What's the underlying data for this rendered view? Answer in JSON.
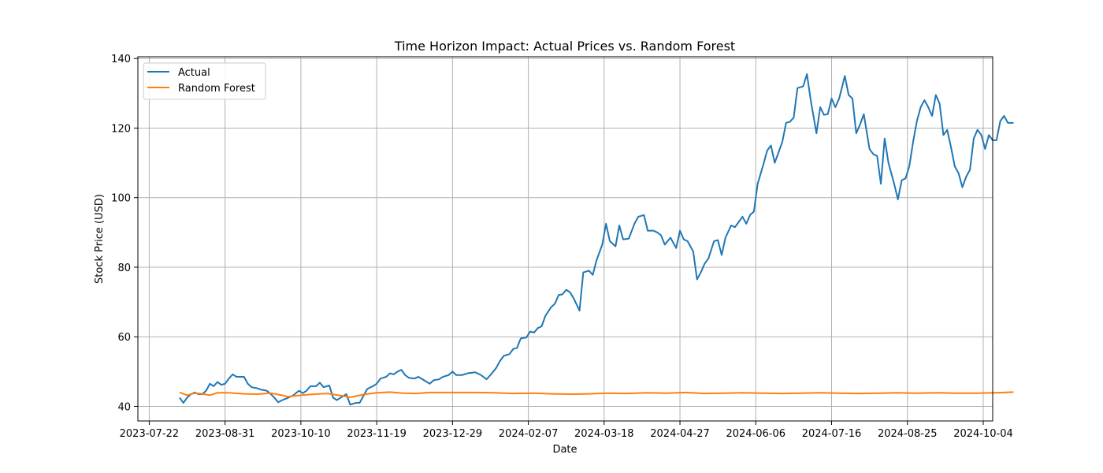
{
  "chart_data": {
    "type": "line",
    "title": "Time Horizon Impact: Actual Prices vs. Random Forest",
    "xlabel": "Date",
    "ylabel": "Stock Price (USD)",
    "x_ticks": [
      "2023-07-22",
      "2023-08-31",
      "2023-10-10",
      "2023-11-19",
      "2023-12-29",
      "2024-02-07",
      "2024-03-18",
      "2024-04-27",
      "2024-06-06",
      "2024-07-16",
      "2024-08-25",
      "2024-10-04"
    ],
    "y_ticks": [
      40,
      60,
      80,
      100,
      120,
      140
    ],
    "xlim": [
      "2023-07-16",
      "2024-10-09"
    ],
    "ylim": [
      35.8,
      140.5
    ],
    "grid": true,
    "legend": "top-left",
    "colors": {
      "actual": "#1f77b4",
      "random_forest": "#ff7f0e"
    },
    "series": [
      {
        "name": "Actual",
        "points": [
          [
            "2023-08-07",
            42.5
          ],
          [
            "2023-08-09",
            41.0
          ],
          [
            "2023-08-11",
            42.5
          ],
          [
            "2023-08-13",
            43.5
          ],
          [
            "2023-08-15",
            44.0
          ],
          [
            "2023-08-17",
            43.5
          ],
          [
            "2023-08-19",
            43.5
          ],
          [
            "2023-08-21",
            44.5
          ],
          [
            "2023-08-23",
            46.5
          ],
          [
            "2023-08-25",
            45.8
          ],
          [
            "2023-08-27",
            47.0
          ],
          [
            "2023-08-29",
            46.2
          ],
          [
            "2023-08-31",
            46.5
          ],
          [
            "2023-09-02",
            48.0
          ],
          [
            "2023-09-04",
            49.2
          ],
          [
            "2023-09-06",
            48.5
          ],
          [
            "2023-09-10",
            48.5
          ],
          [
            "2023-09-12",
            46.5
          ],
          [
            "2023-09-14",
            45.5
          ],
          [
            "2023-09-17",
            45.2
          ],
          [
            "2023-09-19",
            44.8
          ],
          [
            "2023-09-22",
            44.5
          ],
          [
            "2023-09-24",
            43.6
          ],
          [
            "2023-09-26",
            42.5
          ],
          [
            "2023-09-28",
            41.2
          ],
          [
            "2023-10-01",
            42.0
          ],
          [
            "2023-10-03",
            42.4
          ],
          [
            "2023-10-06",
            43.2
          ],
          [
            "2023-10-09",
            44.5
          ],
          [
            "2023-10-11",
            43.8
          ],
          [
            "2023-10-13",
            44.5
          ],
          [
            "2023-10-15",
            45.8
          ],
          [
            "2023-10-18",
            45.8
          ],
          [
            "2023-10-20",
            46.8
          ],
          [
            "2023-10-22",
            45.5
          ],
          [
            "2023-10-25",
            46.0
          ],
          [
            "2023-10-27",
            42.5
          ],
          [
            "2023-10-29",
            41.8
          ],
          [
            "2023-10-31",
            42.5
          ],
          [
            "2023-11-03",
            43.5
          ],
          [
            "2023-11-05",
            40.5
          ],
          [
            "2023-11-08",
            41.0
          ],
          [
            "2023-11-10",
            41.0
          ],
          [
            "2023-11-12",
            43.0
          ],
          [
            "2023-11-14",
            45.0
          ],
          [
            "2023-11-17",
            45.8
          ],
          [
            "2023-11-19",
            46.5
          ],
          [
            "2023-11-21",
            48.0
          ],
          [
            "2023-11-24",
            48.5
          ],
          [
            "2023-11-26",
            49.5
          ],
          [
            "2023-11-28",
            49.2
          ],
          [
            "2023-11-30",
            50.0
          ],
          [
            "2023-12-02",
            50.5
          ],
          [
            "2023-12-04",
            49.0
          ],
          [
            "2023-12-06",
            48.2
          ],
          [
            "2023-12-09",
            48.0
          ],
          [
            "2023-12-11",
            48.5
          ],
          [
            "2023-12-14",
            47.5
          ],
          [
            "2023-12-17",
            46.5
          ],
          [
            "2023-12-19",
            47.5
          ],
          [
            "2023-12-22",
            47.8
          ],
          [
            "2023-12-24",
            48.5
          ],
          [
            "2023-12-27",
            49.0
          ],
          [
            "2023-12-29",
            50.0
          ],
          [
            "2023-12-31",
            49.0
          ],
          [
            "2024-01-03",
            49.0
          ],
          [
            "2024-01-06",
            49.5
          ],
          [
            "2024-01-10",
            49.8
          ],
          [
            "2024-01-13",
            49.0
          ],
          [
            "2024-01-16",
            47.8
          ],
          [
            "2024-01-18",
            49.0
          ],
          [
            "2024-01-21",
            51.0
          ],
          [
            "2024-01-23",
            53.0
          ],
          [
            "2024-01-25",
            54.5
          ],
          [
            "2024-01-28",
            55.0
          ],
          [
            "2024-01-30",
            56.5
          ],
          [
            "2024-02-01",
            56.8
          ],
          [
            "2024-02-03",
            59.5
          ],
          [
            "2024-02-06",
            59.8
          ],
          [
            "2024-02-08",
            61.5
          ],
          [
            "2024-02-10",
            61.2
          ],
          [
            "2024-02-12",
            62.5
          ],
          [
            "2024-02-14",
            63.0
          ],
          [
            "2024-02-16",
            66.0
          ],
          [
            "2024-02-19",
            68.5
          ],
          [
            "2024-02-21",
            69.5
          ],
          [
            "2024-02-23",
            72.0
          ],
          [
            "2024-02-25",
            72.2
          ],
          [
            "2024-02-27",
            73.5
          ],
          [
            "2024-02-29",
            72.8
          ],
          [
            "2024-03-02",
            71.0
          ],
          [
            "2024-03-05",
            67.5
          ],
          [
            "2024-03-07",
            78.5
          ],
          [
            "2024-03-10",
            79.0
          ],
          [
            "2024-03-12",
            77.8
          ],
          [
            "2024-03-14",
            82.0
          ],
          [
            "2024-03-17",
            86.5
          ],
          [
            "2024-03-19",
            92.5
          ],
          [
            "2024-03-21",
            87.5
          ],
          [
            "2024-03-24",
            86.0
          ],
          [
            "2024-03-26",
            92.0
          ],
          [
            "2024-03-28",
            88.0
          ],
          [
            "2024-03-31",
            88.2
          ],
          [
            "2024-04-03",
            92.5
          ],
          [
            "2024-04-05",
            94.5
          ],
          [
            "2024-04-08",
            95.0
          ],
          [
            "2024-04-10",
            90.5
          ],
          [
            "2024-04-13",
            90.5
          ],
          [
            "2024-04-15",
            90.0
          ],
          [
            "2024-04-17",
            89.2
          ],
          [
            "2024-04-19",
            86.5
          ],
          [
            "2024-04-22",
            88.5
          ],
          [
            "2024-04-25",
            85.5
          ],
          [
            "2024-04-27",
            90.5
          ],
          [
            "2024-04-29",
            88.0
          ],
          [
            "2024-05-01",
            87.5
          ],
          [
            "2024-05-04",
            84.5
          ],
          [
            "2024-05-06",
            76.5
          ],
          [
            "2024-05-08",
            78.5
          ],
          [
            "2024-05-10",
            81.0
          ],
          [
            "2024-05-12",
            82.5
          ],
          [
            "2024-05-15",
            87.5
          ],
          [
            "2024-05-17",
            87.8
          ],
          [
            "2024-05-19",
            83.5
          ],
          [
            "2024-05-21",
            88.5
          ],
          [
            "2024-05-24",
            92.0
          ],
          [
            "2024-05-26",
            91.5
          ],
          [
            "2024-05-28",
            93.0
          ],
          [
            "2024-05-30",
            94.5
          ],
          [
            "2024-06-01",
            92.5
          ],
          [
            "2024-06-03",
            95.0
          ],
          [
            "2024-06-05",
            96.0
          ],
          [
            "2024-06-07",
            104.0
          ],
          [
            "2024-06-10",
            109.5
          ],
          [
            "2024-06-12",
            113.5
          ],
          [
            "2024-06-14",
            115.0
          ],
          [
            "2024-06-16",
            110.0
          ],
          [
            "2024-06-18",
            113.0
          ],
          [
            "2024-06-20",
            116.0
          ],
          [
            "2024-06-22",
            121.5
          ],
          [
            "2024-06-24",
            121.8
          ],
          [
            "2024-06-26",
            123.0
          ],
          [
            "2024-06-28",
            131.5
          ],
          [
            "2024-07-01",
            132.0
          ],
          [
            "2024-07-03",
            135.5
          ],
          [
            "2024-07-05",
            128.0
          ],
          [
            "2024-07-08",
            118.5
          ],
          [
            "2024-07-10",
            126.0
          ],
          [
            "2024-07-12",
            123.8
          ],
          [
            "2024-07-14",
            124.0
          ],
          [
            "2024-07-16",
            128.5
          ],
          [
            "2024-07-18",
            126.0
          ],
          [
            "2024-07-20",
            128.5
          ],
          [
            "2024-07-23",
            135.0
          ],
          [
            "2024-07-25",
            129.5
          ],
          [
            "2024-07-27",
            128.5
          ],
          [
            "2024-07-29",
            118.5
          ],
          [
            "2024-07-31",
            121.0
          ],
          [
            "2024-08-02",
            124.0
          ],
          [
            "2024-08-05",
            114.0
          ],
          [
            "2024-08-07",
            112.5
          ],
          [
            "2024-08-09",
            112.0
          ],
          [
            "2024-08-11",
            104.0
          ],
          [
            "2024-08-13",
            117.0
          ],
          [
            "2024-08-15",
            110.0
          ],
          [
            "2024-08-18",
            104.0
          ],
          [
            "2024-08-20",
            99.5
          ],
          [
            "2024-08-22",
            105.0
          ],
          [
            "2024-08-24",
            105.5
          ],
          [
            "2024-08-26",
            109.0
          ],
          [
            "2024-08-28",
            116.0
          ],
          [
            "2024-08-30",
            122.0
          ],
          [
            "2024-09-01",
            126.0
          ],
          [
            "2024-09-03",
            128.0
          ],
          [
            "2024-09-05",
            126.0
          ],
          [
            "2024-09-07",
            123.5
          ],
          [
            "2024-09-09",
            129.5
          ],
          [
            "2024-09-11",
            127.0
          ],
          [
            "2024-09-13",
            118.0
          ],
          [
            "2024-09-15",
            119.5
          ],
          [
            "2024-09-17",
            114.5
          ],
          [
            "2024-09-19",
            109.0
          ],
          [
            "2024-09-21",
            107.0
          ],
          [
            "2024-09-23",
            103.0
          ],
          [
            "2024-09-25",
            106.0
          ],
          [
            "2024-09-27",
            108.0
          ],
          [
            "2024-09-29",
            117.0
          ],
          [
            "2024-10-01",
            119.5
          ],
          [
            "2024-10-03",
            118.0
          ],
          [
            "2024-10-05",
            114.0
          ],
          [
            "2024-10-07",
            118.0
          ],
          [
            "2024-10-09",
            116.5
          ],
          [
            "2024-10-11",
            116.5
          ],
          [
            "2024-10-13",
            122.0
          ],
          [
            "2024-10-15",
            123.5
          ],
          [
            "2024-10-17",
            121.5
          ],
          [
            "2024-10-20",
            121.5
          ]
        ]
      },
      {
        "name": "Random Forest",
        "points": [
          [
            "2023-08-07",
            44.0
          ],
          [
            "2023-08-11",
            43.2
          ],
          [
            "2023-08-15",
            43.8
          ],
          [
            "2023-08-19",
            43.6
          ],
          [
            "2023-08-23",
            43.2
          ],
          [
            "2023-08-27",
            43.9
          ],
          [
            "2023-09-02",
            43.9
          ],
          [
            "2023-09-10",
            43.6
          ],
          [
            "2023-09-17",
            43.5
          ],
          [
            "2023-09-24",
            43.8
          ],
          [
            "2023-09-30",
            43.2
          ],
          [
            "2023-10-03",
            42.8
          ],
          [
            "2023-10-10",
            43.2
          ],
          [
            "2023-10-17",
            43.5
          ],
          [
            "2023-10-24",
            43.7
          ],
          [
            "2023-10-31",
            43.1
          ],
          [
            "2023-11-05",
            42.6
          ],
          [
            "2023-11-12",
            43.4
          ],
          [
            "2023-11-19",
            43.9
          ],
          [
            "2023-11-26",
            44.1
          ],
          [
            "2023-12-03",
            43.8
          ],
          [
            "2023-12-10",
            43.7
          ],
          [
            "2023-12-17",
            44.0
          ],
          [
            "2023-12-24",
            44.0
          ],
          [
            "2023-12-31",
            44.0
          ],
          [
            "2024-01-10",
            44.0
          ],
          [
            "2024-01-20",
            43.9
          ],
          [
            "2024-01-30",
            43.7
          ],
          [
            "2024-02-10",
            43.8
          ],
          [
            "2024-02-20",
            43.6
          ],
          [
            "2024-03-01",
            43.5
          ],
          [
            "2024-03-10",
            43.6
          ],
          [
            "2024-03-20",
            43.8
          ],
          [
            "2024-03-30",
            43.7
          ],
          [
            "2024-04-10",
            43.9
          ],
          [
            "2024-04-20",
            43.8
          ],
          [
            "2024-04-30",
            44.0
          ],
          [
            "2024-05-10",
            43.7
          ],
          [
            "2024-05-20",
            43.8
          ],
          [
            "2024-05-30",
            43.9
          ],
          [
            "2024-06-10",
            43.8
          ],
          [
            "2024-06-20",
            43.7
          ],
          [
            "2024-06-30",
            43.8
          ],
          [
            "2024-07-10",
            43.9
          ],
          [
            "2024-07-20",
            43.8
          ],
          [
            "2024-07-30",
            43.7
          ],
          [
            "2024-08-10",
            43.8
          ],
          [
            "2024-08-20",
            43.9
          ],
          [
            "2024-08-30",
            43.8
          ],
          [
            "2024-09-10",
            43.9
          ],
          [
            "2024-09-20",
            43.8
          ],
          [
            "2024-09-30",
            43.8
          ],
          [
            "2024-10-10",
            43.9
          ],
          [
            "2024-10-20",
            44.1
          ]
        ]
      }
    ]
  }
}
